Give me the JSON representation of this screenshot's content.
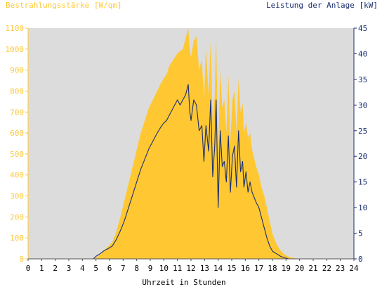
{
  "chart_data": {
    "type": "area",
    "y_left_label": "Bestrahlungsstärke [W/qm]",
    "y_right_label": "Leistung der Anlage [kW]",
    "xlabel": "Uhrzeit in Stunden",
    "xlim": [
      0,
      24
    ],
    "ylim_left": [
      0,
      1100
    ],
    "ylim_right": [
      0,
      45
    ],
    "x_ticks": [
      "0",
      "1",
      "2",
      "3",
      "4",
      "5",
      "6",
      "7",
      "8",
      "9",
      "10",
      "11",
      "12",
      "13",
      "14",
      "15",
      "16",
      "17",
      "18",
      "19",
      "20",
      "21",
      "22",
      "23",
      "24"
    ],
    "y_left_ticks": [
      "0",
      "100",
      "200",
      "300",
      "400",
      "500",
      "600",
      "700",
      "800",
      "900",
      "1000",
      "1100"
    ],
    "y_right_ticks": [
      "0",
      "5",
      "10",
      "15",
      "20",
      "25",
      "30",
      "35",
      "40",
      "45"
    ],
    "grid": false,
    "colors": {
      "irradiance_fill": "#ffc832",
      "power_line": "#1a2e6e",
      "plot_background": "#dcdcdc",
      "left_axis": "#ffc832",
      "right_axis": "#1a2e6e",
      "tick_label": "#ffc832",
      "right_tick_label": "#1a2e6e",
      "x_tick_label": "#000000"
    },
    "series": [
      {
        "name": "Bestrahlungsstärke [W/qm]",
        "axis": "left",
        "x": [
          0,
          4.8,
          5.0,
          5.3,
          5.6,
          5.9,
          6.2,
          6.5,
          6.8,
          7.1,
          7.4,
          7.7,
          8.0,
          8.3,
          8.6,
          8.9,
          9.2,
          9.5,
          9.8,
          10.0,
          10.2,
          10.4,
          10.6,
          10.8,
          11.0,
          11.2,
          11.4,
          11.6,
          11.8,
          11.9,
          12.0,
          12.2,
          12.4,
          12.6,
          12.8,
          12.95,
          13.1,
          13.3,
          13.45,
          13.6,
          13.75,
          13.85,
          14.0,
          14.15,
          14.3,
          14.45,
          14.6,
          14.75,
          14.9,
          15.05,
          15.2,
          15.35,
          15.5,
          15.65,
          15.8,
          15.9,
          16.05,
          16.2,
          16.35,
          16.5,
          16.65,
          16.8,
          17.0,
          17.2,
          17.4,
          17.6,
          17.8,
          18.0,
          18.3,
          18.6,
          18.9,
          19.2,
          19.5,
          19.8,
          20.0,
          20.2,
          24
        ],
        "values": [
          0,
          0,
          5,
          20,
          40,
          60,
          80,
          130,
          200,
          280,
          360,
          440,
          520,
          600,
          660,
          720,
          760,
          800,
          840,
          860,
          880,
          920,
          940,
          960,
          980,
          990,
          1000,
          1050,
          1100,
          1000,
          960,
          1040,
          1060,
          900,
          950,
          760,
          1000,
          780,
          1040,
          650,
          780,
          1060,
          500,
          900,
          720,
          760,
          600,
          880,
          560,
          760,
          800,
          600,
          860,
          700,
          740,
          600,
          650,
          580,
          600,
          520,
          480,
          440,
          400,
          340,
          300,
          240,
          180,
          120,
          70,
          40,
          20,
          10,
          5,
          0,
          0,
          0,
          0
        ]
      },
      {
        "name": "Leistung der Anlage [kW]",
        "axis": "right",
        "x": [
          0,
          4.8,
          5.0,
          5.3,
          5.6,
          5.9,
          6.2,
          6.5,
          6.8,
          7.1,
          7.4,
          7.7,
          8.0,
          8.3,
          8.6,
          8.9,
          9.2,
          9.5,
          9.8,
          10.0,
          10.2,
          10.4,
          10.6,
          10.8,
          11.0,
          11.2,
          11.4,
          11.6,
          11.8,
          11.9,
          12.0,
          12.2,
          12.4,
          12.6,
          12.8,
          12.95,
          13.1,
          13.3,
          13.45,
          13.6,
          13.75,
          13.85,
          14.0,
          14.15,
          14.3,
          14.45,
          14.6,
          14.75,
          14.9,
          15.05,
          15.2,
          15.35,
          15.5,
          15.65,
          15.8,
          15.9,
          16.05,
          16.2,
          16.35,
          16.5,
          16.65,
          16.8,
          17.0,
          17.2,
          17.4,
          17.6,
          17.8,
          18.0,
          18.3,
          18.6,
          18.9,
          19.2,
          19.5,
          19.8,
          20.0,
          20.2,
          24
        ],
        "values": [
          0,
          0,
          0.5,
          1.0,
          1.6,
          2.0,
          2.5,
          3.8,
          5.5,
          7.5,
          10,
          12.5,
          15,
          17.5,
          19.5,
          21.5,
          23,
          24.5,
          25.8,
          26.5,
          27,
          28,
          29,
          30,
          31,
          30,
          31,
          32,
          34,
          29,
          27,
          31,
          30,
          25,
          26,
          19,
          26,
          21,
          31,
          16,
          22,
          31,
          10,
          25,
          18,
          19,
          15,
          24,
          13,
          20,
          22,
          14,
          25,
          17,
          19,
          14,
          17,
          13,
          15,
          13,
          12,
          11,
          10,
          8,
          6,
          4,
          2.5,
          1.5,
          1.0,
          0.5,
          0.2,
          0,
          0,
          0,
          0,
          0,
          0
        ]
      }
    ]
  }
}
